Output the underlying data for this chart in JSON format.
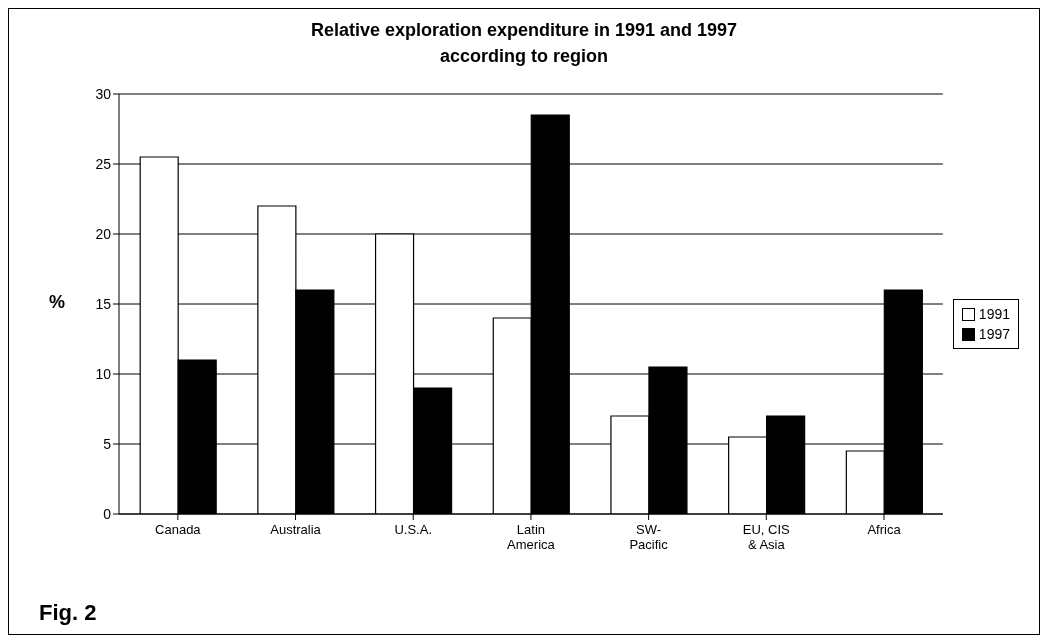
{
  "chart_data": {
    "type": "bar",
    "title": "Relative exploration expenditure in 1991 and 1997\naccording to region",
    "ylabel": "%",
    "categories": [
      "Canada",
      "Australia",
      "U.S.A.",
      "Latin\nAmerica",
      "SW-\nPacific",
      "EU, CIS\n& Asia",
      "Africa"
    ],
    "series": [
      {
        "name": "1991",
        "color": "#ffffff",
        "values": [
          25.5,
          22,
          20,
          14,
          7,
          5.5,
          4.5
        ]
      },
      {
        "name": "1997",
        "color": "#000000",
        "values": [
          11,
          16,
          9,
          28.5,
          10.5,
          7,
          16
        ]
      }
    ],
    "ylim": [
      0,
      30
    ],
    "yticks": [
      0,
      5,
      10,
      15,
      20,
      25,
      30
    ],
    "grid": "y",
    "legend": "right",
    "annotations": [
      "Fig. 2"
    ]
  }
}
